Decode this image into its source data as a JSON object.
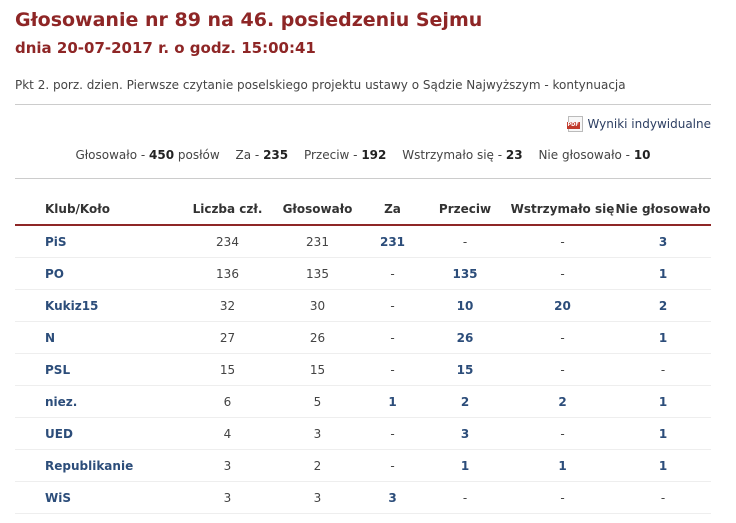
{
  "header": {
    "title": "Głosowanie nr 89 na 46. posiedzeniu Sejmu",
    "subtitle": "dnia 20-07-2017 r. o godz. 15:00:41",
    "agenda": "Pkt 2. porz. dzien. Pierwsze czytanie poselskiego projektu ustawy o Sądzie Najwyższym - kontynuacja"
  },
  "pdf_link": {
    "label": "Wyniki indywidualne",
    "icon": "pdf-icon",
    "icon_text": "PDF"
  },
  "summary": {
    "voted_label": "Głosowało -",
    "voted_value": "450",
    "voted_suffix": "posłów",
    "za_label": "Za -",
    "za_value": "235",
    "przeciw_label": "Przeciw -",
    "przeciw_value": "192",
    "wstrzymalo_label": "Wstrzymało się -",
    "wstrzymalo_value": "23",
    "nie_label": "Nie głosowało -",
    "nie_value": "10"
  },
  "table": {
    "headers": [
      "Klub/Koło",
      "Liczba czł.",
      "Głosowało",
      "Za",
      "Przeciw",
      "Wstrzymało się",
      "Nie głosowało"
    ],
    "rows": [
      {
        "club": "PiS",
        "members": "234",
        "voted": "231",
        "za": "231",
        "przeciw": "-",
        "wstrzymalo": "-",
        "nie": "3"
      },
      {
        "club": "PO",
        "members": "136",
        "voted": "135",
        "za": "-",
        "przeciw": "135",
        "wstrzymalo": "-",
        "nie": "1"
      },
      {
        "club": "Kukiz15",
        "members": "32",
        "voted": "30",
        "za": "-",
        "przeciw": "10",
        "wstrzymalo": "20",
        "nie": "2"
      },
      {
        "club": "N",
        "members": "27",
        "voted": "26",
        "za": "-",
        "przeciw": "26",
        "wstrzymalo": "-",
        "nie": "1"
      },
      {
        "club": "PSL",
        "members": "15",
        "voted": "15",
        "za": "-",
        "przeciw": "15",
        "wstrzymalo": "-",
        "nie": "-"
      },
      {
        "club": "niez.",
        "members": "6",
        "voted": "5",
        "za": "1",
        "przeciw": "2",
        "wstrzymalo": "2",
        "nie": "1"
      },
      {
        "club": "UED",
        "members": "4",
        "voted": "3",
        "za": "-",
        "przeciw": "3",
        "wstrzymalo": "-",
        "nie": "1"
      },
      {
        "club": "Republikanie",
        "members": "3",
        "voted": "2",
        "za": "-",
        "przeciw": "1",
        "wstrzymalo": "1",
        "nie": "1"
      },
      {
        "club": "WiS",
        "members": "3",
        "voted": "3",
        "za": "3",
        "przeciw": "-",
        "wstrzymalo": "-",
        "nie": "-"
      }
    ]
  },
  "colors": {
    "title": "#8e2626",
    "link": "#2c4d7a",
    "divider": "#cccccc"
  }
}
